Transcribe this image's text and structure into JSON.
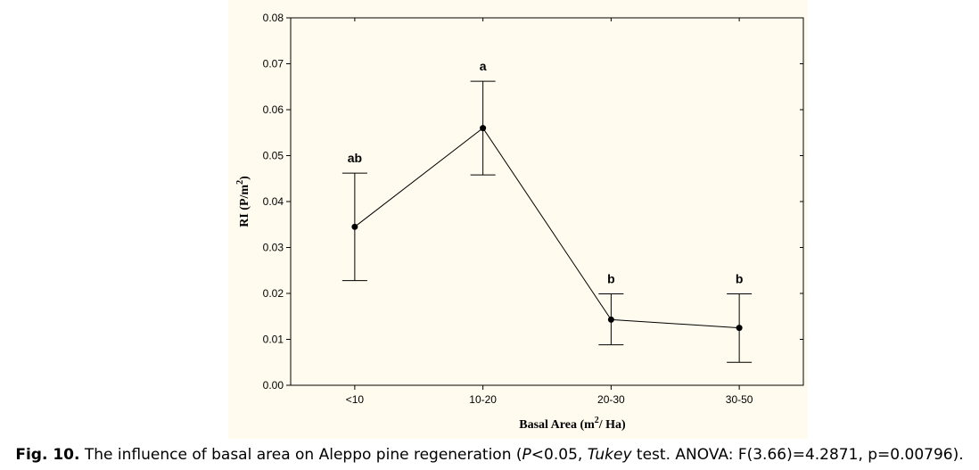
{
  "chart_data": {
    "type": "line",
    "categories": [
      "<10",
      "10-20",
      "20-30",
      "30-50"
    ],
    "values": [
      0.0345,
      0.056,
      0.0143,
      0.0125
    ],
    "error_low": [
      0.0228,
      0.0458,
      0.0088,
      0.005
    ],
    "error_high": [
      0.0462,
      0.0662,
      0.0199,
      0.0199
    ],
    "significance_labels": [
      "ab",
      "a",
      "b",
      "b"
    ],
    "ylim": [
      0,
      0.08
    ],
    "y_ticks": [
      "0.00",
      "0.01",
      "0.02",
      "0.03",
      "0.04",
      "0.05",
      "0.06",
      "0.07",
      "0.08"
    ],
    "ylabel": "RI (P/m2)",
    "ylabel_parts": {
      "base": "RI (P/m",
      "sup": "2",
      "tail": ")"
    },
    "xlabel": "Basal Area (m2/ Ha)",
    "xlabel_parts": {
      "base": "Basal Area (m",
      "sup": "2",
      "tail": "/ Ha)"
    },
    "grid": false,
    "legend": "none"
  },
  "caption": {
    "label": "Fig. 10.",
    "text_1": " The influence of basal area on Aleppo pine regeneration (",
    "p_italic": "P",
    "text_2": "<0.05, ",
    "tukey_italic": "Tukey",
    "text_3": " test. ANOVA: F(3.66)=4.2871, p=0.00796)."
  }
}
